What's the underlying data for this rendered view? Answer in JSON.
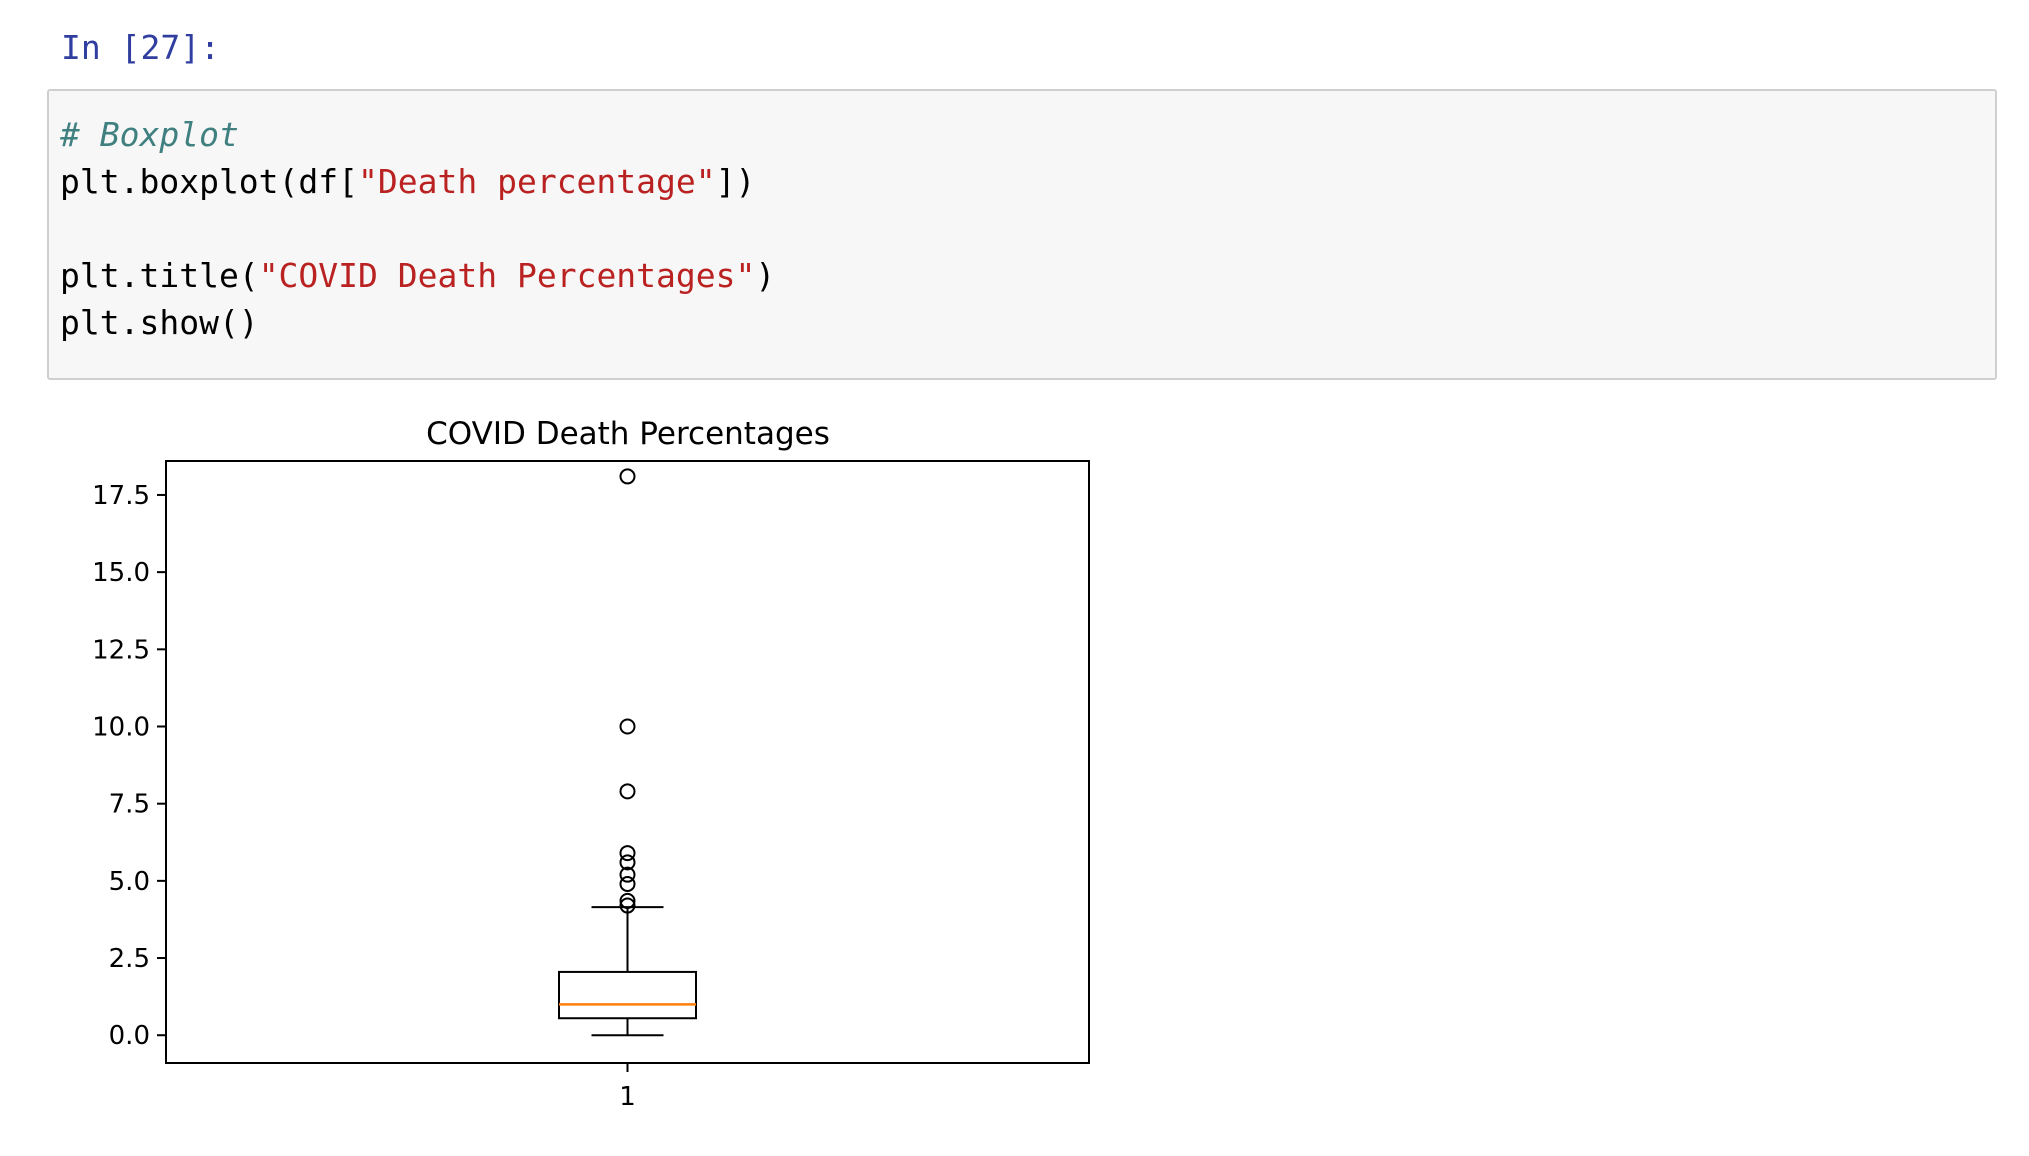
{
  "notebook": {
    "prompt": "In [27]:",
    "code_lines": [
      [
        {
          "t": "# Boxplot",
          "c": "comment"
        }
      ],
      [
        {
          "t": "plt.boxplot(df[",
          "c": ""
        },
        {
          "t": "\"Death percentage\"",
          "c": "str"
        },
        {
          "t": "])",
          "c": ""
        }
      ],
      [],
      [
        {
          "t": "plt.title(",
          "c": ""
        },
        {
          "t": "\"COVID Death Percentages\"",
          "c": "str"
        },
        {
          "t": ")",
          "c": ""
        }
      ],
      [
        {
          "t": "plt.show()",
          "c": ""
        }
      ]
    ]
  },
  "chart_data": {
    "type": "box",
    "title": "COVID Death Percentages",
    "xlabel": "",
    "ylabel": "",
    "ylim": [
      -0.9,
      18.6
    ],
    "yticks": [
      "0.0",
      "2.5",
      "5.0",
      "7.5",
      "10.0",
      "12.5",
      "15.0",
      "17.5"
    ],
    "ytick_values": [
      0,
      2.5,
      5,
      7.5,
      10,
      12.5,
      15,
      17.5
    ],
    "categories": [
      "1"
    ],
    "box": {
      "whisker_low": 0.0,
      "q1": 0.55,
      "median": 1.0,
      "q3": 2.05,
      "whisker_high": 4.15
    },
    "outliers": [
      4.2,
      4.35,
      4.9,
      5.2,
      5.6,
      5.9,
      7.9,
      10.0,
      18.1
    ],
    "colors": {
      "median": "#ff7f0e",
      "box": "#000000"
    }
  }
}
